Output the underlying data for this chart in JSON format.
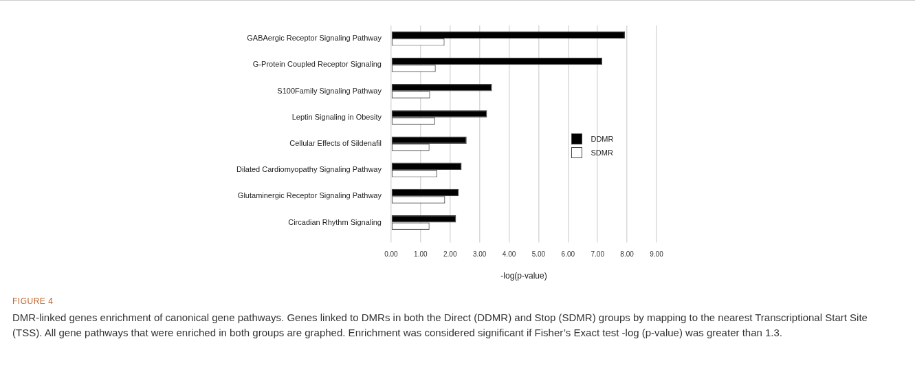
{
  "chart_data": {
    "type": "bar",
    "orientation": "horizontal",
    "xlabel": "-log(p-value)",
    "categories": [
      "GABAergic Receptor Signaling Pathway",
      "G-Protein Coupled Receptor Signaling",
      "S100Family Signaling Pathway",
      "Leptin Signaling in Obesity",
      "Cellular Effects of Sildenafil",
      "Dilated Cardiomyopathy Signaling Pathway",
      "Glutaminergic Receptor Signaling Pathway",
      "Circadian Rhythm Signaling"
    ],
    "series": [
      {
        "name": "DDMR",
        "color": "#000000",
        "values": [
          7.93,
          7.16,
          3.42,
          3.25,
          2.56,
          2.39,
          2.29,
          2.2
        ]
      },
      {
        "name": "SDMR",
        "color": "#ffffff",
        "values": [
          1.81,
          1.51,
          1.32,
          1.49,
          1.3,
          1.56,
          1.83,
          1.3
        ]
      }
    ],
    "xlim": [
      0,
      9
    ],
    "xticks": [
      {
        "value": 0,
        "label": "0.00"
      },
      {
        "value": 1,
        "label": "1.00"
      },
      {
        "value": 2,
        "label": "2.00"
      },
      {
        "value": 3,
        "label": "3.00"
      },
      {
        "value": 4,
        "label": "4.00"
      },
      {
        "value": 5,
        "label": "5.00"
      },
      {
        "value": 6,
        "label": "6.00"
      },
      {
        "value": 7,
        "label": "7.00"
      },
      {
        "value": 8,
        "label": "8.00"
      },
      {
        "value": 9,
        "label": "9.00"
      }
    ],
    "grid": "x",
    "legend": "right",
    "annotations": [
      "FIGURE 4",
      "DMR-linked genes enrichment of canonical gene pathways. Genes linked to DMRs in both the Direct (DDMR) and Stop (SDMR) groups by mapping to the nearest Transcriptional Start Site (TSS). All gene pathways that were enriched in both groups are graphed. Enrichment was considered significant if Fisher’s Exact test -log (p-value) was greater than 1.3."
    ]
  }
}
